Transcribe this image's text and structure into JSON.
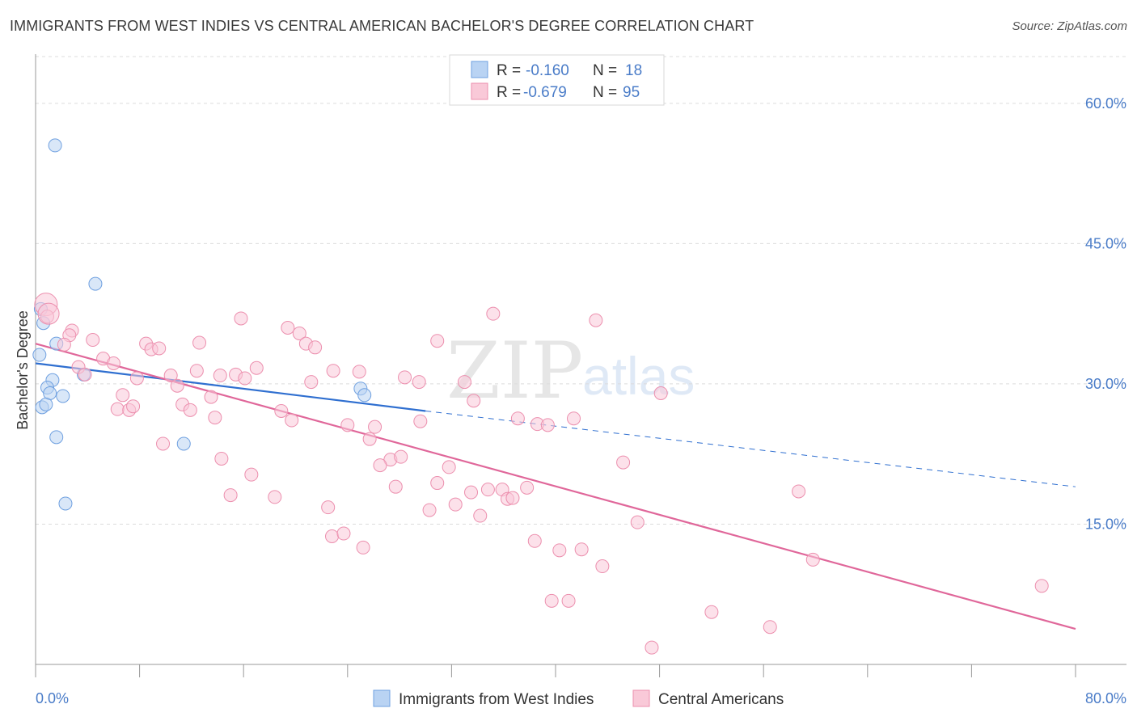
{
  "title": "IMMIGRANTS FROM WEST INDIES VS CENTRAL AMERICAN BACHELOR'S DEGREE CORRELATION CHART",
  "source": "Source: ZipAtlas.com",
  "watermark": {
    "zip": "ZIP",
    "atlas": "atlas"
  },
  "legend": {
    "r_label": "R =",
    "n_label": "N =",
    "rows": [
      {
        "r": "-0.160",
        "n": "18",
        "color": "#9fc2f0"
      },
      {
        "r": "-0.679",
        "n": "95",
        "color": "#f5b3c8"
      }
    ]
  },
  "chart_data": {
    "type": "scatter",
    "title": "IMMIGRANTS FROM WEST INDIES VS CENTRAL AMERICAN BACHELOR'S DEGREE CORRELATION CHART",
    "xlabel": "",
    "ylabel": "Bachelor's Degree",
    "xlim": [
      0,
      80
    ],
    "ylim": [
      0,
      65
    ],
    "x_tick_labels": [
      "0.0%",
      "80.0%"
    ],
    "y_ticks": [
      15,
      30,
      45,
      60
    ],
    "y_tick_labels": [
      "15.0%",
      "30.0%",
      "45.0%",
      "60.0%"
    ],
    "grid": true,
    "legend_position": "top-center",
    "series": [
      {
        "name": "Immigrants from West Indies",
        "color": "#6fa0e0",
        "fill": "#b9d3f3",
        "points": [
          [
            1.5,
            55.5
          ],
          [
            4.6,
            40.7
          ],
          [
            0.4,
            38.0
          ],
          [
            0.6,
            36.5
          ],
          [
            1.6,
            34.3
          ],
          [
            0.3,
            33.1
          ],
          [
            3.7,
            31.0
          ],
          [
            1.3,
            30.4
          ],
          [
            0.9,
            29.6
          ],
          [
            1.1,
            29.0
          ],
          [
            2.1,
            28.7
          ],
          [
            0.5,
            27.5
          ],
          [
            0.8,
            27.8
          ],
          [
            1.6,
            24.3
          ],
          [
            11.4,
            23.6
          ],
          [
            2.3,
            17.2
          ],
          [
            25.0,
            29.5
          ],
          [
            25.3,
            28.8
          ]
        ],
        "trend": {
          "x": [
            0,
            30
          ],
          "y": [
            32.2,
            27.1
          ],
          "dashed_to": [
            80,
            19.0
          ],
          "color": "#2f6fd0"
        }
      },
      {
        "name": "Central Americans",
        "color": "#ec8fae",
        "fill": "#f9c9d8",
        "points": [
          [
            0.8,
            38.5
          ],
          [
            0.9,
            37.2
          ],
          [
            2.8,
            35.7
          ],
          [
            2.6,
            35.2
          ],
          [
            2.2,
            34.2
          ],
          [
            4.4,
            34.7
          ],
          [
            5.2,
            32.7
          ],
          [
            6.0,
            32.2
          ],
          [
            3.3,
            31.8
          ],
          [
            3.8,
            31.0
          ],
          [
            8.5,
            34.3
          ],
          [
            8.9,
            33.7
          ],
          [
            9.5,
            33.8
          ],
          [
            12.6,
            34.4
          ],
          [
            7.8,
            30.6
          ],
          [
            10.4,
            30.9
          ],
          [
            10.9,
            29.8
          ],
          [
            12.4,
            31.4
          ],
          [
            15.4,
            31.0
          ],
          [
            14.2,
            30.9
          ],
          [
            16.1,
            30.6
          ],
          [
            17.0,
            31.7
          ],
          [
            15.8,
            37.0
          ],
          [
            19.4,
            36.0
          ],
          [
            20.3,
            35.4
          ],
          [
            20.8,
            34.3
          ],
          [
            21.5,
            33.9
          ],
          [
            22.9,
            31.4
          ],
          [
            24.9,
            31.3
          ],
          [
            21.2,
            30.2
          ],
          [
            28.4,
            30.7
          ],
          [
            29.5,
            30.2
          ],
          [
            33.0,
            30.2
          ],
          [
            30.9,
            34.6
          ],
          [
            35.2,
            37.5
          ],
          [
            43.1,
            36.8
          ],
          [
            6.7,
            28.8
          ],
          [
            6.3,
            27.3
          ],
          [
            7.2,
            27.2
          ],
          [
            7.5,
            27.6
          ],
          [
            11.3,
            27.8
          ],
          [
            11.9,
            27.2
          ],
          [
            13.5,
            28.6
          ],
          [
            13.8,
            26.4
          ],
          [
            18.9,
            27.1
          ],
          [
            19.7,
            26.1
          ],
          [
            24.0,
            25.6
          ],
          [
            26.1,
            25.4
          ],
          [
            29.6,
            26.0
          ],
          [
            33.7,
            28.2
          ],
          [
            37.1,
            26.3
          ],
          [
            38.6,
            25.7
          ],
          [
            39.4,
            25.6
          ],
          [
            41.4,
            26.3
          ],
          [
            48.1,
            29.0
          ],
          [
            9.8,
            23.6
          ],
          [
            14.3,
            22.0
          ],
          [
            25.7,
            24.1
          ],
          [
            27.3,
            21.9
          ],
          [
            28.1,
            22.2
          ],
          [
            26.5,
            21.3
          ],
          [
            31.8,
            21.1
          ],
          [
            16.6,
            20.3
          ],
          [
            15.0,
            18.1
          ],
          [
            18.4,
            17.9
          ],
          [
            27.7,
            19.0
          ],
          [
            30.9,
            19.4
          ],
          [
            33.5,
            18.4
          ],
          [
            34.8,
            18.7
          ],
          [
            35.9,
            18.7
          ],
          [
            36.3,
            17.7
          ],
          [
            36.7,
            17.8
          ],
          [
            37.8,
            18.9
          ],
          [
            32.3,
            17.1
          ],
          [
            30.3,
            16.5
          ],
          [
            34.2,
            15.9
          ],
          [
            22.5,
            16.8
          ],
          [
            45.2,
            21.6
          ],
          [
            46.3,
            15.2
          ],
          [
            58.7,
            18.5
          ],
          [
            22.8,
            13.7
          ],
          [
            23.7,
            14.0
          ],
          [
            25.2,
            12.5
          ],
          [
            38.4,
            13.2
          ],
          [
            40.3,
            12.2
          ],
          [
            42.0,
            12.3
          ],
          [
            43.6,
            10.5
          ],
          [
            59.8,
            11.2
          ],
          [
            39.7,
            6.8
          ],
          [
            41.0,
            6.8
          ],
          [
            52.0,
            5.6
          ],
          [
            56.5,
            4.0
          ],
          [
            47.4,
            1.8
          ],
          [
            77.4,
            8.4
          ],
          [
            1.0,
            37.5
          ]
        ],
        "trend": {
          "x": [
            0,
            80
          ],
          "y": [
            34.3,
            3.8
          ],
          "color": "#e0679a"
        }
      }
    ]
  }
}
